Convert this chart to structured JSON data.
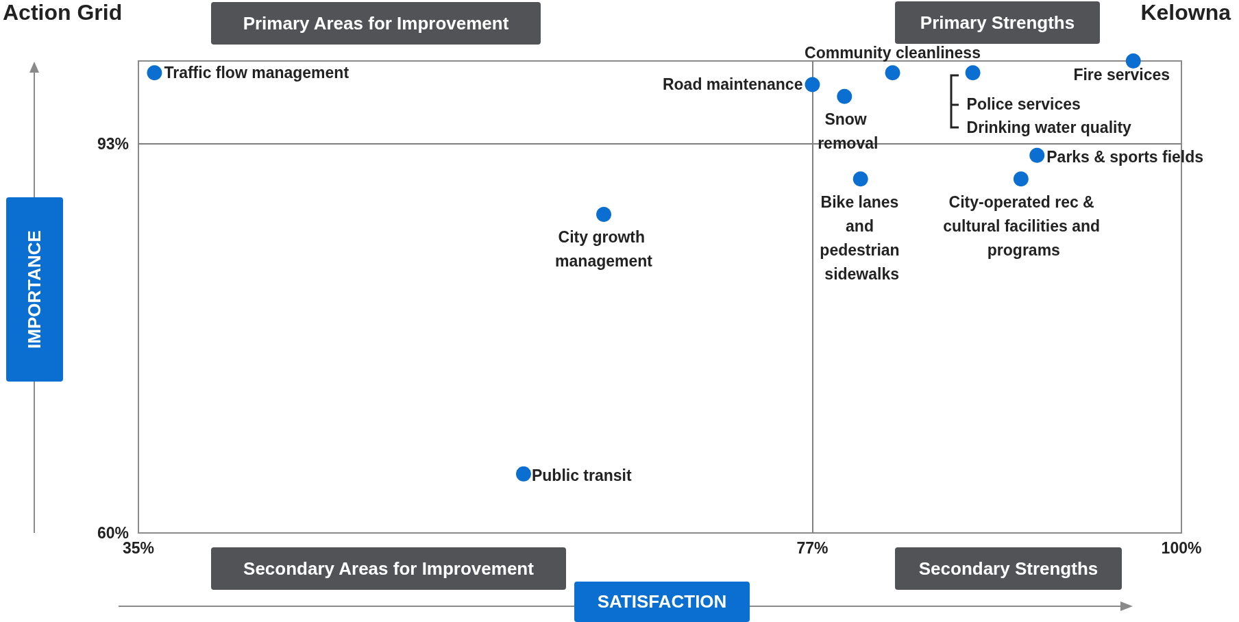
{
  "chart_data": {
    "type": "scatter",
    "title": "Action Grid",
    "subtitle": "Kelowna",
    "xlabel": "SATISFACTION",
    "ylabel": "IMPORTANCE",
    "series": [
      {
        "color": "#0a6fd0",
        "x": [
          36,
          77,
          79,
          82,
          87,
          97,
          91,
          90,
          80,
          64,
          59
        ],
        "values": [
          99,
          98,
          97,
          99,
          99,
          100,
          92,
          90,
          90,
          87,
          65
        ]
      }
    ],
    "xlim": [
      35,
      100
    ],
    "xticks": [
      {
        "value": 35,
        "label": "35%"
      },
      {
        "value": 77,
        "label": "77%"
      },
      {
        "value": 100,
        "label": "100%"
      }
    ],
    "ylim": [
      60,
      100
    ],
    "yticks": [
      {
        "value": 60,
        "label": "60%"
      },
      {
        "value": 93,
        "label": "93%"
      }
    ],
    "ref_lines": [
      {
        "axis": "x",
        "value": 77,
        "color": "#7f7f7f"
      },
      {
        "axis": "y",
        "value": 93,
        "color": "#7f7f7f"
      }
    ],
    "marker": "circle",
    "annotations": [
      {
        "text": "Traffic flow management",
        "x": 36,
        "y": 99
      },
      {
        "text": "Road maintenance",
        "x": 77,
        "y": 98
      },
      {
        "text": "Snow removal",
        "x": 79,
        "y": 97
      },
      {
        "text": "Community cleanliness",
        "x": 82,
        "y": 99
      },
      {
        "text": "Police services",
        "x": 87,
        "y": 99
      },
      {
        "text": "Drinking water quality",
        "x": 87,
        "y": 99
      },
      {
        "text": "Fire services",
        "x": 97,
        "y": 100
      },
      {
        "text": "Parks & sports fields",
        "x": 91,
        "y": 92
      },
      {
        "text": "City-operated rec & cultural facilities and programs",
        "x": 90,
        "y": 90
      },
      {
        "text": "Bike lanes and pedestrian sidewalks",
        "x": 80,
        "y": 90
      },
      {
        "text": "City growth management",
        "x": 64,
        "y": 87
      },
      {
        "text": "Public transit",
        "x": 59,
        "y": 65
      },
      "Primary Areas for Improvement",
      "Primary Strengths",
      "Secondary Areas for Improvement",
      "Secondary Strengths"
    ]
  }
}
